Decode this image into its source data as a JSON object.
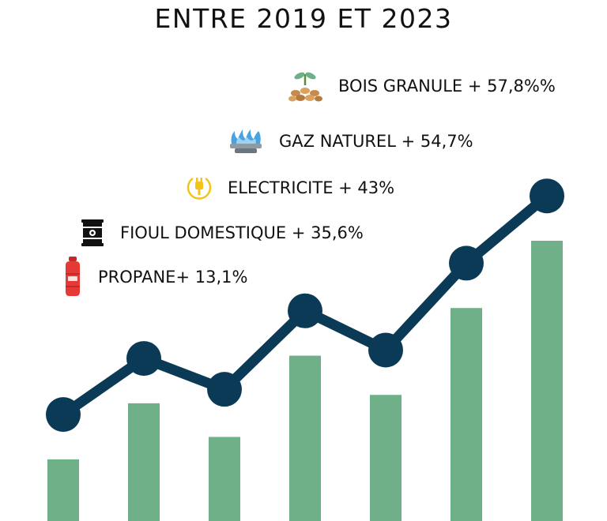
{
  "title": "ENTRE 2019 ET 2023",
  "legend": [
    {
      "icon": "wood-pellets-icon",
      "label": "BOIS GRANULE + 57,8%%"
    },
    {
      "icon": "gas-flame-icon",
      "label": "GAZ NATUREL + 54,7%"
    },
    {
      "icon": "electric-plug-icon",
      "label": "ELECTRICITE + 43%"
    },
    {
      "icon": "oil-barrel-icon",
      "label": "FIOUL DOMESTIQUE + 35,6%"
    },
    {
      "icon": "propane-bottle-icon",
      "label": "PROPANE+ 13,1%"
    }
  ],
  "colors": {
    "bar": "#6fb089",
    "line": "#0b3a56",
    "text": "#111111"
  },
  "chart_data": {
    "type": "bar",
    "title": "ENTRE 2019 ET 2023",
    "xlabel": "",
    "ylabel": "",
    "ylim": [
      0,
      100
    ],
    "grid": false,
    "axes_visible": false,
    "bar_values": [
      22,
      42,
      30,
      59,
      45,
      76,
      100
    ],
    "line_values": [
      38,
      58,
      47,
      75,
      61,
      92,
      116
    ]
  }
}
